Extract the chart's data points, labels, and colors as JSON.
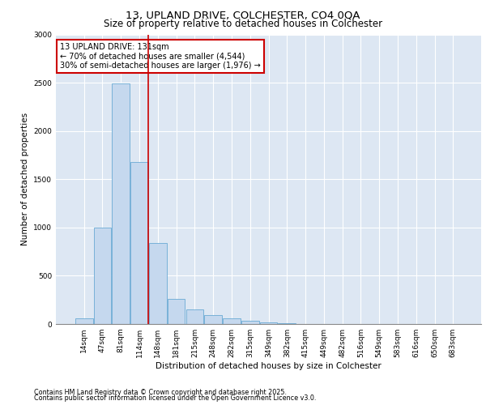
{
  "title_line1": "13, UPLAND DRIVE, COLCHESTER, CO4 0QA",
  "title_line2": "Size of property relative to detached houses in Colchester",
  "xlabel": "Distribution of detached houses by size in Colchester",
  "ylabel": "Number of detached properties",
  "footnote1": "Contains HM Land Registry data © Crown copyright and database right 2025.",
  "footnote2": "Contains public sector information licensed under the Open Government Licence v3.0.",
  "annotation_line1": "13 UPLAND DRIVE: 131sqm",
  "annotation_line2": "← 70% of detached houses are smaller (4,544)",
  "annotation_line3": "30% of semi-detached houses are larger (1,976) →",
  "bar_labels": [
    "14sqm",
    "47sqm",
    "81sqm",
    "114sqm",
    "148sqm",
    "181sqm",
    "215sqm",
    "248sqm",
    "282sqm",
    "315sqm",
    "349sqm",
    "382sqm",
    "415sqm",
    "449sqm",
    "482sqm",
    "516sqm",
    "549sqm",
    "583sqm",
    "616sqm",
    "650sqm",
    "683sqm"
  ],
  "bar_values": [
    55,
    1000,
    2490,
    1680,
    840,
    260,
    155,
    95,
    55,
    30,
    15,
    8,
    4,
    2,
    1,
    0,
    0,
    0,
    0,
    0,
    0
  ],
  "bar_color": "#c5d8ee",
  "bar_edgecolor": "#6aaad4",
  "vline_x": 3.5,
  "vline_color": "#cc0000",
  "ylim": [
    0,
    3000
  ],
  "yticks": [
    0,
    500,
    1000,
    1500,
    2000,
    2500,
    3000
  ],
  "bg_color": "#dde7f3",
  "grid_color": "#ffffff",
  "annotation_box_edgecolor": "#cc0000",
  "annotation_box_fill": "#ffffff",
  "title1_fontsize": 9.5,
  "title2_fontsize": 8.5,
  "ylabel_fontsize": 7.5,
  "xlabel_fontsize": 7.5,
  "tick_fontsize": 6.5,
  "footnote_fontsize": 5.8,
  "annotation_fontsize": 7.0
}
